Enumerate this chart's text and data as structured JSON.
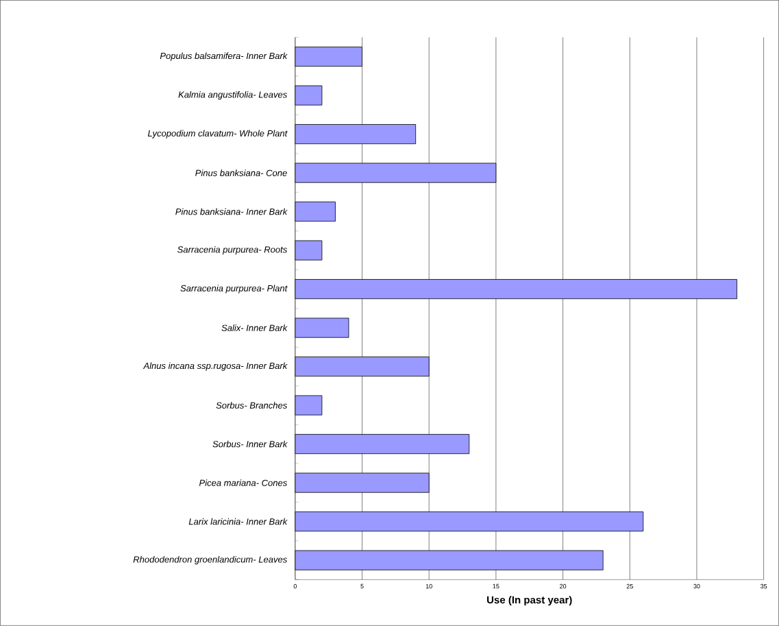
{
  "chart_data": {
    "type": "bar",
    "orientation": "horizontal",
    "xlabel": "Use  (In past year)",
    "categories": [
      "Populus balsamifera- Inner Bark",
      "Kalmia angustifolia- Leaves",
      "Lycopodium clavatum- Whole Plant",
      "Pinus banksiana- Cone",
      "Pinus banksiana- Inner Bark",
      "Sarracenia purpurea- Roots",
      "Sarracenia purpurea- Plant",
      "Salix- Inner Bark",
      "Alnus incana ssp.rugosa- Inner Bark",
      "Sorbus- Branches",
      "Sorbus- Inner Bark",
      "Picea mariana- Cones",
      "Larix laricinia- Inner Bark",
      "Rhododendron groenlandicum- Leaves"
    ],
    "values": [
      5,
      2,
      9,
      15,
      3,
      2,
      33,
      4,
      10,
      2,
      13,
      10,
      26,
      23
    ],
    "color": "#9999ff",
    "xlim": [
      0,
      35
    ],
    "xticks": [
      0,
      5,
      10,
      15,
      20,
      25,
      30,
      35
    ],
    "grid": "x"
  }
}
